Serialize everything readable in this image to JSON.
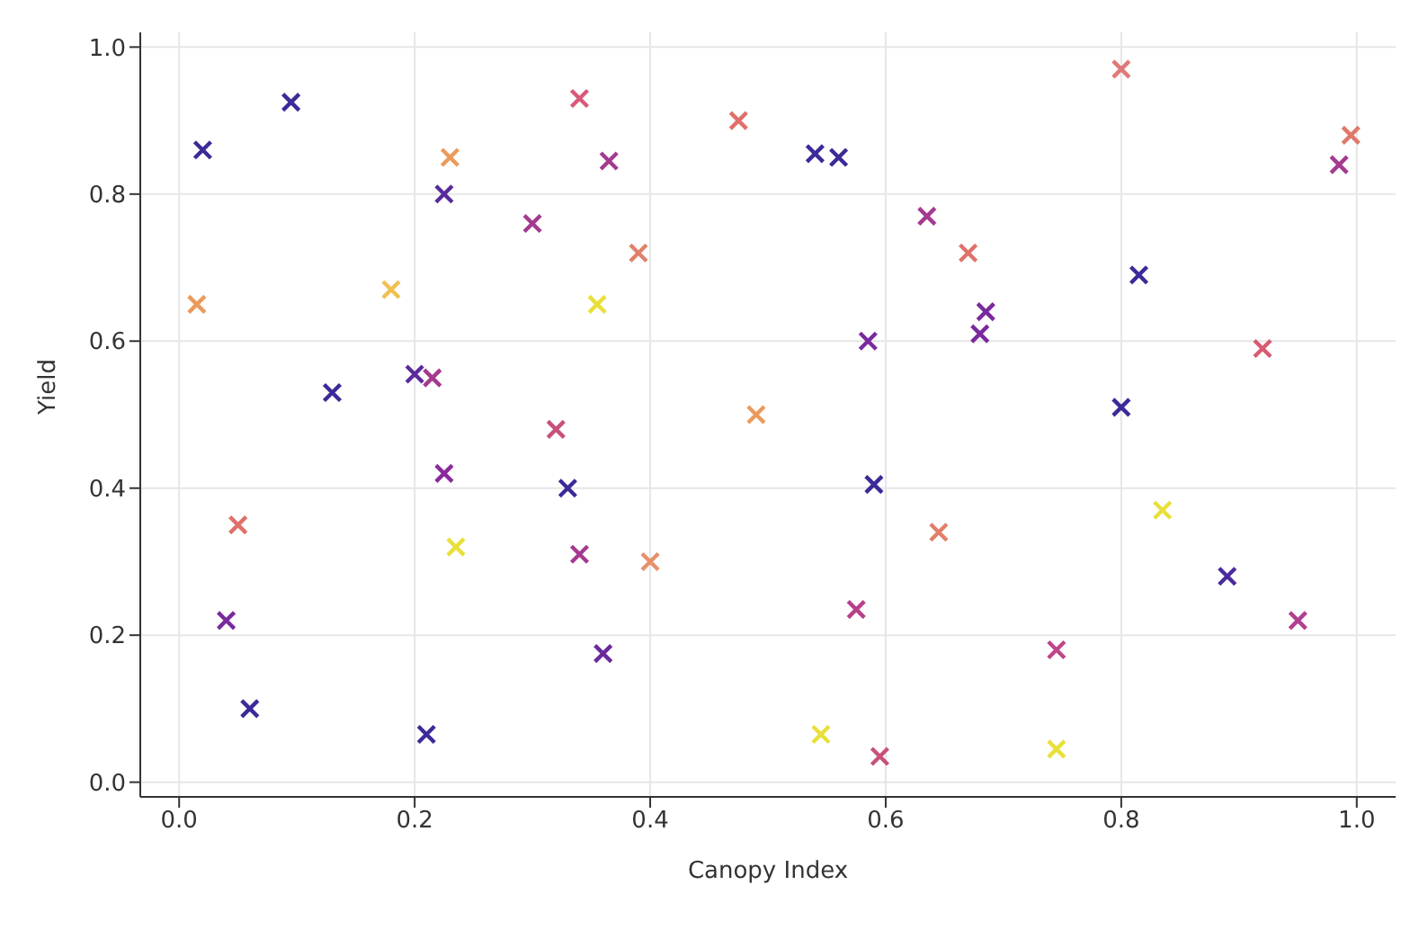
{
  "chart_data": {
    "type": "scatter",
    "xlabel": "Canopy Index",
    "ylabel": "Yield",
    "marker": "cross",
    "grid": true,
    "xlim": [
      -0.033,
      1.033
    ],
    "ylim": [
      -0.02,
      1.02
    ],
    "xticks": [
      {
        "value": 0,
        "label": "0.0"
      },
      {
        "value": 0.2,
        "label": "0.2"
      },
      {
        "value": 0.4,
        "label": "0.4"
      },
      {
        "value": 0.6,
        "label": "0.6"
      },
      {
        "value": 0.8,
        "label": "0.8"
      },
      {
        "value": 1,
        "label": "1.0"
      }
    ],
    "yticks": [
      {
        "value": 0,
        "label": "0.0"
      },
      {
        "value": 0.2,
        "label": "0.2"
      },
      {
        "value": 0.4,
        "label": "0.4"
      },
      {
        "value": 0.6,
        "label": "0.6"
      },
      {
        "value": 0.8,
        "label": "0.8"
      },
      {
        "value": 1,
        "label": "1.0"
      }
    ],
    "x": [
      0.02,
      0.095,
      0.015,
      0.13,
      0.05,
      0.04,
      0.06,
      0.18,
      0.23,
      0.225,
      0.2,
      0.215,
      0.225,
      0.235,
      0.21,
      0.3,
      0.34,
      0.365,
      0.39,
      0.355,
      0.32,
      0.33,
      0.34,
      0.4,
      0.36,
      0.475,
      0.49,
      0.54,
      0.56,
      0.585,
      0.59,
      0.575,
      0.545,
      0.595,
      0.635,
      0.67,
      0.685,
      0.68,
      0.645,
      0.745,
      0.745,
      0.8,
      0.815,
      0.8,
      0.835,
      0.89,
      0.92,
      0.95,
      0.985,
      0.995
    ],
    "values": [
      0.86,
      0.925,
      0.65,
      0.53,
      0.35,
      0.22,
      0.1,
      0.67,
      0.85,
      0.8,
      0.555,
      0.55,
      0.42,
      0.32,
      0.065,
      0.76,
      0.93,
      0.845,
      0.72,
      0.65,
      0.48,
      0.4,
      0.31,
      0.3,
      0.175,
      0.9,
      0.5,
      0.855,
      0.85,
      0.6,
      0.405,
      0.235,
      0.065,
      0.035,
      0.77,
      0.72,
      0.64,
      0.61,
      0.34,
      0.18,
      0.045,
      0.97,
      0.69,
      0.51,
      0.37,
      0.28,
      0.59,
      0.22,
      0.84,
      0.88
    ],
    "colors": [
      "#3b2a98",
      "#3b2a98",
      "#eb9a5c",
      "#3b2a98",
      "#e0706a",
      "#7a2a9c",
      "#3b2a98",
      "#f0c050",
      "#eb9a5c",
      "#5a2a9c",
      "#5a2a9c",
      "#a43a8f",
      "#8a2a9c",
      "#e8e03a",
      "#3b2a98",
      "#a43a8f",
      "#d85a78",
      "#a43a8f",
      "#e0806a",
      "#e8e03a",
      "#c9507c",
      "#3b2a98",
      "#a43a8f",
      "#e8906a",
      "#6a2a9c",
      "#e0706a",
      "#eb9a5c",
      "#3b2a98",
      "#3b2a98",
      "#7a2a9c",
      "#3b2a98",
      "#b8408a",
      "#e8e03a",
      "#c9507c",
      "#a43a8f",
      "#e0706a",
      "#7a2a9c",
      "#7a2a9c",
      "#e0806a",
      "#c0448a",
      "#e8e03a",
      "#e07878",
      "#3b2a98",
      "#3b2a98",
      "#e8e03a",
      "#4a2a9c",
      "#d85a70",
      "#b0408f",
      "#a43a8f",
      "#e0786a"
    ]
  }
}
